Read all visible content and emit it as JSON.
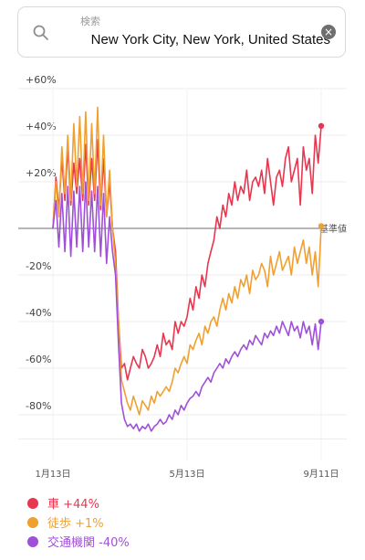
{
  "search": {
    "placeholder": "検索",
    "value": "New York City, New York, United States",
    "search_icon": "magnifier-icon",
    "clear_icon": "clear-x-icon"
  },
  "chart_data": {
    "type": "line",
    "ylabel": "",
    "xlabel": "",
    "ylim": [
      -90,
      60
    ],
    "y_ticks": [
      "+60%",
      "+40%",
      "+20%",
      "",
      "-20%",
      "-40%",
      "-60%",
      "-80%"
    ],
    "y_tick_values": [
      60,
      40,
      20,
      0,
      -20,
      -40,
      -60,
      -80
    ],
    "x_ticks": [
      "1月13日",
      "5月13日",
      "9月11日"
    ],
    "baseline_label": "基準値",
    "grid": true,
    "series": [
      {
        "name": "車",
        "color": "#e8364f",
        "end_label": "+44%",
        "values": [
          0,
          22,
          8,
          30,
          12,
          35,
          10,
          28,
          15,
          30,
          12,
          36,
          10,
          30,
          12,
          38,
          8,
          30,
          5,
          20,
          0,
          -10,
          -40,
          -60,
          -58,
          -65,
          -60,
          -55,
          -58,
          -60,
          -52,
          -55,
          -60,
          -58,
          -55,
          -50,
          -55,
          -45,
          -50,
          -48,
          -52,
          -40,
          -45,
          -40,
          -42,
          -38,
          -30,
          -35,
          -25,
          -30,
          -20,
          -25,
          -15,
          -10,
          -5,
          5,
          0,
          10,
          5,
          15,
          10,
          20,
          12,
          18,
          15,
          25,
          12,
          20,
          22,
          18,
          25,
          15,
          30,
          20,
          10,
          22,
          25,
          18,
          30,
          35,
          20,
          25,
          30,
          10,
          35,
          25,
          30,
          15,
          40,
          28,
          44
        ]
      },
      {
        "name": "徒歩",
        "color": "#f0a030",
        "end_label": "+1%",
        "values": [
          0,
          20,
          5,
          35,
          15,
          40,
          12,
          45,
          18,
          48,
          15,
          50,
          12,
          45,
          15,
          52,
          10,
          40,
          5,
          25,
          0,
          -15,
          -40,
          -65,
          -70,
          -75,
          -78,
          -72,
          -76,
          -80,
          -74,
          -76,
          -78,
          -72,
          -75,
          -70,
          -72,
          -70,
          -68,
          -70,
          -66,
          -60,
          -62,
          -58,
          -55,
          -58,
          -50,
          -52,
          -48,
          -45,
          -50,
          -42,
          -45,
          -40,
          -38,
          -42,
          -35,
          -30,
          -35,
          -28,
          -32,
          -25,
          -30,
          -22,
          -25,
          -20,
          -28,
          -18,
          -22,
          -20,
          -15,
          -18,
          -25,
          -12,
          -20,
          -15,
          -10,
          -18,
          -15,
          -12,
          -20,
          -8,
          -15,
          -10,
          -5,
          -15,
          -8,
          -20,
          -10,
          -25,
          1
        ]
      },
      {
        "name": "交通機関",
        "color": "#a050d8",
        "end_label": "-40%",
        "values": [
          0,
          12,
          -8,
          15,
          -10,
          18,
          -12,
          16,
          -8,
          18,
          -10,
          20,
          -8,
          16,
          -10,
          18,
          -12,
          15,
          -15,
          5,
          -10,
          -20,
          -50,
          -75,
          -82,
          -85,
          -84,
          -86,
          -84,
          -87,
          -85,
          -86,
          -84,
          -87,
          -85,
          -84,
          -82,
          -84,
          -83,
          -80,
          -82,
          -78,
          -80,
          -76,
          -78,
          -75,
          -73,
          -72,
          -70,
          -72,
          -68,
          -66,
          -64,
          -66,
          -62,
          -60,
          -58,
          -60,
          -56,
          -58,
          -55,
          -53,
          -55,
          -52,
          -50,
          -52,
          -48,
          -50,
          -46,
          -48,
          -50,
          -45,
          -47,
          -44,
          -46,
          -42,
          -45,
          -40,
          -43,
          -46,
          -40,
          -44,
          -42,
          -47,
          -40,
          -45,
          -42,
          -50,
          -41,
          -52,
          -40
        ]
      }
    ]
  }
}
